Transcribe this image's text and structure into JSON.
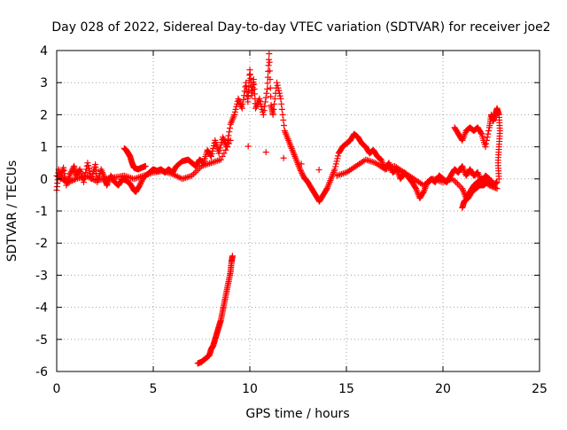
{
  "chart_data": {
    "type": "scatter",
    "title": "Day 028 of 2022, Sidereal Day-to-day VTEC variation (SDTVAR) for receiver joe2",
    "xlabel": "GPS time / hours",
    "ylabel": "SDTVAR / TECUs",
    "xlim": [
      0,
      25
    ],
    "ylim": [
      -6,
      4
    ],
    "x_ticks": [
      0,
      5,
      10,
      15,
      20,
      25
    ],
    "y_ticks": [
      -6,
      -5,
      -4,
      -3,
      -2,
      -1,
      0,
      1,
      2,
      3,
      4
    ],
    "x_tick_labels": [
      "0",
      "5",
      "10",
      "15",
      "20",
      "25"
    ],
    "y_tick_labels": [
      "-6",
      "-5",
      "-4",
      "-3",
      "-2",
      "-1",
      "0",
      "1",
      "2",
      "3",
      "4"
    ],
    "grid": true,
    "marker": "plus",
    "color": "#ff0000",
    "series": [
      {
        "name": "main",
        "points": [
          [
            0.0,
            -0.35
          ],
          [
            0.1,
            0.3
          ],
          [
            0.2,
            0.0
          ],
          [
            0.35,
            0.35
          ],
          [
            0.5,
            -0.2
          ],
          [
            0.7,
            0.15
          ],
          [
            0.9,
            0.4
          ],
          [
            1.0,
            0.1
          ],
          [
            1.2,
            0.3
          ],
          [
            1.4,
            -0.1
          ],
          [
            1.6,
            0.5
          ],
          [
            1.8,
            0.0
          ],
          [
            2.0,
            0.45
          ],
          [
            2.1,
            -0.1
          ],
          [
            2.3,
            0.3
          ],
          [
            2.5,
            0.0
          ],
          [
            2.6,
            -0.2
          ],
          [
            2.8,
            0.1
          ],
          [
            3.0,
            -0.1
          ],
          [
            3.2,
            -0.2
          ],
          [
            3.4,
            0.0
          ],
          [
            3.6,
            -0.05
          ],
          [
            3.8,
            -0.15
          ],
          [
            4.0,
            -0.35
          ],
          [
            4.1,
            -0.4
          ],
          [
            4.3,
            -0.2
          ],
          [
            4.5,
            0.05
          ],
          [
            4.8,
            0.2
          ],
          [
            5.0,
            0.3
          ],
          [
            5.2,
            0.25
          ],
          [
            5.4,
            0.3
          ],
          [
            5.6,
            0.2
          ],
          [
            5.8,
            0.3
          ],
          [
            6.0,
            0.2
          ],
          [
            6.2,
            0.4
          ],
          [
            6.5,
            0.55
          ],
          [
            6.8,
            0.6
          ],
          [
            7.0,
            0.5
          ],
          [
            7.2,
            0.4
          ],
          [
            7.4,
            0.6
          ],
          [
            7.6,
            0.5
          ],
          [
            7.8,
            0.9
          ],
          [
            8.0,
            0.7
          ],
          [
            8.2,
            1.2
          ],
          [
            8.4,
            0.8
          ],
          [
            8.6,
            1.3
          ],
          [
            8.8,
            1.0
          ],
          [
            9.0,
            1.7
          ],
          [
            9.2,
            2.0
          ],
          [
            9.4,
            2.5
          ],
          [
            9.6,
            2.2
          ],
          [
            9.8,
            3.0
          ],
          [
            9.9,
            2.4
          ],
          [
            10.0,
            3.4
          ],
          [
            10.1,
            2.6
          ],
          [
            10.2,
            3.1
          ],
          [
            10.3,
            2.2
          ],
          [
            10.5,
            2.5
          ],
          [
            10.7,
            2.0
          ],
          [
            10.9,
            2.8
          ],
          [
            11.0,
            3.9
          ],
          [
            11.1,
            2.3
          ],
          [
            11.2,
            2.0
          ],
          [
            11.4,
            3.0
          ],
          [
            11.6,
            2.5
          ],
          [
            11.8,
            1.5
          ],
          [
            12.0,
            1.2
          ],
          [
            12.2,
            0.9
          ],
          [
            12.4,
            0.6
          ],
          [
            12.6,
            0.3
          ],
          [
            12.8,
            0.05
          ],
          [
            13.0,
            -0.1
          ],
          [
            13.2,
            -0.3
          ],
          [
            13.4,
            -0.5
          ],
          [
            13.6,
            -0.7
          ],
          [
            13.8,
            -0.5
          ],
          [
            14.0,
            -0.3
          ],
          [
            14.2,
            0.0
          ],
          [
            14.4,
            0.3
          ],
          [
            14.6,
            0.8
          ],
          [
            14.8,
            1.0
          ],
          [
            15.0,
            1.1
          ],
          [
            15.2,
            1.2
          ],
          [
            15.4,
            1.4
          ],
          [
            15.6,
            1.3
          ],
          [
            15.8,
            1.1
          ],
          [
            16.0,
            1.0
          ],
          [
            16.2,
            0.8
          ],
          [
            16.4,
            0.9
          ],
          [
            16.6,
            0.7
          ],
          [
            16.8,
            0.6
          ],
          [
            17.0,
            0.3
          ],
          [
            17.2,
            0.5
          ],
          [
            17.4,
            0.2
          ],
          [
            17.6,
            0.3
          ],
          [
            17.8,
            0.0
          ],
          [
            18.0,
            0.2
          ],
          [
            18.2,
            0.05
          ],
          [
            18.4,
            -0.1
          ],
          [
            18.6,
            -0.3
          ],
          [
            18.8,
            -0.6
          ],
          [
            19.0,
            -0.4
          ],
          [
            19.2,
            -0.1
          ],
          [
            19.4,
            0.0
          ],
          [
            19.6,
            -0.1
          ],
          [
            19.8,
            0.1
          ],
          [
            20.0,
            0.0
          ],
          [
            20.2,
            -0.1
          ],
          [
            20.4,
            0.1
          ],
          [
            20.6,
            0.3
          ],
          [
            20.8,
            0.2
          ],
          [
            21.0,
            0.4
          ],
          [
            21.2,
            0.1
          ],
          [
            21.4,
            0.3
          ],
          [
            21.6,
            0.1
          ],
          [
            21.8,
            0.2
          ],
          [
            22.0,
            -0.1
          ],
          [
            22.2,
            0.1
          ],
          [
            22.4,
            0.0
          ],
          [
            22.6,
            -0.2
          ],
          [
            22.8,
            -0.1
          ]
        ]
      },
      {
        "name": "lower-alt",
        "points": [
          [
            0.0,
            0.1
          ],
          [
            0.3,
            0.0
          ],
          [
            0.6,
            -0.1
          ],
          [
            1.0,
            0.0
          ],
          [
            1.5,
            0.1
          ],
          [
            2.0,
            -0.05
          ],
          [
            2.5,
            0.0
          ],
          [
            3.0,
            0.05
          ],
          [
            3.5,
            0.1
          ],
          [
            4.0,
            0.0
          ],
          [
            4.5,
            0.1
          ],
          [
            5.0,
            0.2
          ],
          [
            5.5,
            0.25
          ],
          [
            6.0,
            0.15
          ],
          [
            6.5,
            0.0
          ],
          [
            7.0,
            0.1
          ],
          [
            7.5,
            0.4
          ],
          [
            8.0,
            0.5
          ],
          [
            8.5,
            0.6
          ],
          [
            9.0,
            1.2
          ],
          [
            14.5,
            0.1
          ],
          [
            15.0,
            0.2
          ],
          [
            15.5,
            0.4
          ],
          [
            16.0,
            0.6
          ],
          [
            16.5,
            0.5
          ],
          [
            17.0,
            0.3
          ],
          [
            17.5,
            0.4
          ],
          [
            18.0,
            0.2
          ],
          [
            18.5,
            0.0
          ],
          [
            19.0,
            -0.2
          ],
          [
            19.5,
            0.0
          ],
          [
            20.0,
            -0.1
          ],
          [
            20.5,
            0.0
          ],
          [
            21.0,
            -0.3
          ],
          [
            21.2,
            -0.6
          ],
          [
            21.4,
            -0.4
          ],
          [
            21.6,
            -0.2
          ],
          [
            21.8,
            -0.1
          ],
          [
            22.0,
            0.0
          ],
          [
            22.4,
            -0.2
          ],
          [
            22.8,
            -0.3
          ]
        ]
      },
      {
        "name": "hump-3.5h",
        "points": [
          [
            3.5,
            0.95
          ],
          [
            3.6,
            0.9
          ],
          [
            3.7,
            0.8
          ],
          [
            3.8,
            0.7
          ],
          [
            3.9,
            0.5
          ],
          [
            4.0,
            0.35
          ],
          [
            4.2,
            0.3
          ],
          [
            4.4,
            0.35
          ],
          [
            4.6,
            0.4
          ]
        ]
      },
      {
        "name": "late-branch",
        "points": [
          [
            20.6,
            1.6
          ],
          [
            20.8,
            1.4
          ],
          [
            21.0,
            1.2
          ],
          [
            21.2,
            1.5
          ],
          [
            21.4,
            1.6
          ],
          [
            21.6,
            1.5
          ],
          [
            21.8,
            1.6
          ],
          [
            22.0,
            1.4
          ],
          [
            22.2,
            1.0
          ],
          [
            22.4,
            1.6
          ],
          [
            22.5,
            2.0
          ],
          [
            22.6,
            1.8
          ],
          [
            22.7,
            2.0
          ],
          [
            22.8,
            2.2
          ],
          [
            22.9,
            2.0
          ],
          [
            22.95,
            1.5
          ],
          [
            22.9,
            1.0
          ],
          [
            22.85,
            0.5
          ],
          [
            22.9,
            0.0
          ]
        ]
      },
      {
        "name": "outlier-drop",
        "points": [
          [
            21.0,
            -0.9
          ],
          [
            21.1,
            -0.7
          ],
          [
            21.3,
            -0.6
          ],
          [
            21.5,
            -0.4
          ],
          [
            21.7,
            -0.3
          ],
          [
            21.9,
            -0.2
          ],
          [
            22.1,
            -0.2
          ],
          [
            22.3,
            -0.1
          ],
          [
            22.5,
            -0.05
          ]
        ]
      },
      {
        "name": "steep-descent",
        "points": [
          [
            7.3,
            -5.75
          ],
          [
            7.5,
            -5.7
          ],
          [
            7.7,
            -5.6
          ],
          [
            7.9,
            -5.5
          ],
          [
            8.0,
            -5.3
          ],
          [
            8.1,
            -5.2
          ],
          [
            8.2,
            -5.0
          ],
          [
            8.3,
            -4.8
          ],
          [
            8.4,
            -4.6
          ],
          [
            8.5,
            -4.4
          ],
          [
            8.6,
            -4.1
          ],
          [
            8.7,
            -3.8
          ],
          [
            8.8,
            -3.5
          ],
          [
            8.9,
            -3.2
          ],
          [
            9.0,
            -2.9
          ],
          [
            9.05,
            -2.6
          ],
          [
            9.1,
            -2.4
          ]
        ]
      }
    ]
  }
}
